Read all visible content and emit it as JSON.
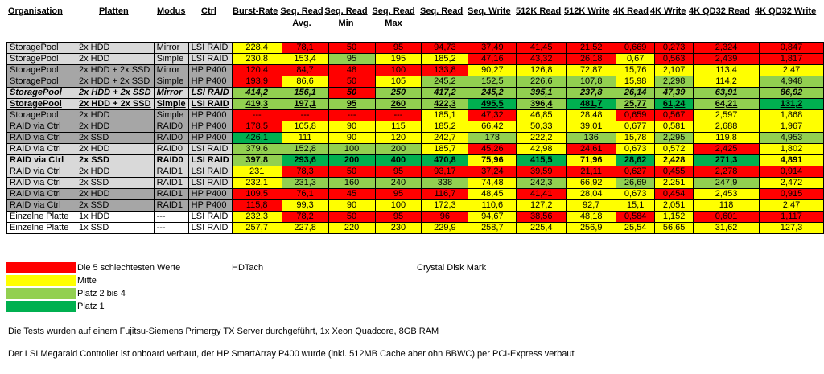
{
  "headers": {
    "organisation": "Organisation",
    "platten": "Platten",
    "modus": "Modus",
    "ctrl": "Ctrl",
    "burst": "Burst-Rate",
    "seq_read_avg_1": "Seq. Read",
    "seq_read_avg_2": "Avg.",
    "seq_read_min_1": "Seq. Read",
    "seq_read_min_2": "Min",
    "seq_read_max_1": "Seq. Read",
    "seq_read_max_2": "Max",
    "seq_read": "Seq. Read",
    "seq_write": "Seq. Write",
    "k512_read": "512K Read",
    "k512_write": "512K Write",
    "k4_read": "4K Read",
    "k4_write": "4K Write",
    "qd32_read": "4K QD32 Read",
    "qd32_write": "4K QD32 Write"
  },
  "rows": [
    {
      "cells": [
        "StoragePool",
        "2x HDD",
        "Mirror",
        "LSI RAID",
        "228,4",
        "78,1",
        "50",
        "95",
        "94,73",
        "37,49",
        "41,45",
        "21,52",
        "0,669",
        "0,273",
        "2,324",
        "0,847"
      ],
      "colors": [
        "y",
        "r",
        "r",
        "r",
        "r",
        "r",
        "r",
        "r",
        "r",
        "r",
        "r",
        "r"
      ]
    },
    {
      "cells": [
        "StoragePool",
        "2x HDD",
        "Simple",
        "LSI RAID",
        "230,8",
        "153,4",
        "95",
        "195",
        "185,2",
        "47,16",
        "43,32",
        "26,18",
        "0,67",
        "0,563",
        "2,439",
        "1,817"
      ],
      "colors": [
        "y",
        "y",
        "g",
        "y",
        "y",
        "r",
        "r",
        "r",
        "y",
        "r",
        "r",
        "r"
      ]
    },
    {
      "cells": [
        "StoragePool",
        "2x HDD + 2x SSD",
        "Mirror",
        "HP P400",
        "120,4",
        "84,7",
        "48",
        "100",
        "133,8",
        "90,27",
        "126,8",
        "72,87",
        "15,76",
        "2,107",
        "113,4",
        "2,47"
      ],
      "colors": [
        "r",
        "r",
        "r",
        "r",
        "r",
        "y",
        "y",
        "y",
        "y",
        "y",
        "y",
        "y"
      ]
    },
    {
      "cells": [
        "StoragePool",
        "2x HDD + 2x SSD",
        "Simple",
        "HP P400",
        "193,9",
        "86,6",
        "50",
        "105",
        "245,2",
        "152,5",
        "226,6",
        "107,8",
        "15,98",
        "2,298",
        "114,2",
        "4,948"
      ],
      "colors": [
        "r",
        "y",
        "r",
        "y",
        "g",
        "g",
        "g",
        "g",
        "y",
        "g",
        "y",
        "g"
      ]
    },
    {
      "cells": [
        "StoragePool",
        "2x HDD + 2x SSD",
        "Mirror",
        "LSI RAID",
        "414,2",
        "156,1",
        "50",
        "250",
        "417,2",
        "245,2",
        "395,1",
        "237,8",
        "26,14",
        "47,39",
        "63,91",
        "86,92"
      ],
      "colors": [
        "g",
        "g",
        "r",
        "g",
        "g",
        "g",
        "g",
        "g",
        "g",
        "g",
        "g",
        "g"
      ],
      "style": "bi"
    },
    {
      "cells": [
        "StoragePool",
        "2x HDD + 2x SSD",
        "Simple",
        "LSI RAID",
        "419,3",
        "197,1",
        "95",
        "260",
        "422,3",
        "495,5",
        "396,4",
        "481,7",
        "25,77",
        "61,24",
        "64,21",
        "131,2"
      ],
      "colors": [
        "g",
        "g",
        "g",
        "g",
        "g",
        "d",
        "g",
        "d",
        "g",
        "d",
        "g",
        "d"
      ],
      "style": "bu"
    },
    {
      "cells": [
        "StoragePool",
        "2x HDD",
        "Simple",
        "HP P400",
        "---",
        "---",
        "---",
        "---",
        "185,1",
        "47,32",
        "46,85",
        "28,48",
        "0,659",
        "0,567",
        "2,597",
        "1,868"
      ],
      "colors": [
        "r",
        "r",
        "r",
        "r",
        "y",
        "r",
        "y",
        "y",
        "r",
        "r",
        "y",
        "y"
      ]
    },
    {
      "cells": [
        "RAID via Ctrl",
        "2x HDD",
        "RAID0",
        "HP P400",
        "178,5",
        "105,8",
        "90",
        "115",
        "185,2",
        "66,42",
        "50,33",
        "39,01",
        "0,677",
        "0,581",
        "2,688",
        "1,967"
      ],
      "colors": [
        "r",
        "y",
        "y",
        "y",
        "y",
        "y",
        "y",
        "y",
        "y",
        "y",
        "y",
        "y"
      ]
    },
    {
      "cells": [
        "RAID via Ctrl",
        "2x SSD",
        "RAID0",
        "HP P400",
        "426,1",
        "111",
        "90",
        "120",
        "242,7",
        "178",
        "222,2",
        "136",
        "15,78",
        "2,295",
        "119,8",
        "4,953"
      ],
      "colors": [
        "d",
        "y",
        "y",
        "y",
        "y",
        "g",
        "y",
        "g",
        "y",
        "g",
        "y",
        "g"
      ]
    },
    {
      "cells": [
        "RAID via Ctrl",
        "2x HDD",
        "RAID0",
        "LSI RAID",
        "379,6",
        "152,8",
        "100",
        "200",
        "185,7",
        "45,26",
        "42,98",
        "24,61",
        "0,673",
        "0,572",
        "2,425",
        "1,802"
      ],
      "colors": [
        "g",
        "g",
        "g",
        "g",
        "y",
        "r",
        "y",
        "r",
        "y",
        "y",
        "r",
        "y"
      ]
    },
    {
      "cells": [
        "RAID via Ctrl",
        "2x SSD",
        "RAID0",
        "LSI RAID",
        "397,8",
        "293,6",
        "200",
        "400",
        "470,8",
        "75,96",
        "415,5",
        "71,96",
        "28,62",
        "2,428",
        "271,3",
        "4,891"
      ],
      "colors": [
        "g",
        "d",
        "d",
        "d",
        "d",
        "y",
        "d",
        "y",
        "d",
        "y",
        "d",
        "y"
      ],
      "style": "b"
    },
    {
      "cells": [
        "RAID via Ctrl",
        "2x HDD",
        "RAID1",
        "LSI RAID",
        "231",
        "78,3",
        "50",
        "95",
        "93,17",
        "37,24",
        "39,59",
        "21,11",
        "0,627",
        "0,455",
        "2,278",
        "0,914"
      ],
      "colors": [
        "y",
        "r",
        "r",
        "r",
        "r",
        "r",
        "r",
        "r",
        "r",
        "r",
        "r",
        "r"
      ]
    },
    {
      "cells": [
        "RAID via Ctrl",
        "2x SSD",
        "RAID1",
        "LSI RAID",
        "232,1",
        "231,3",
        "160",
        "240",
        "338",
        "74,48",
        "242,3",
        "66,92",
        "26,69",
        "2.251",
        "247,9",
        "2,472"
      ],
      "colors": [
        "y",
        "g",
        "g",
        "g",
        "g",
        "y",
        "g",
        "y",
        "g",
        "y",
        "g",
        "y"
      ]
    },
    {
      "cells": [
        "RAID via Ctrl",
        "2x HDD",
        "RAID1",
        "HP P400",
        "109,5",
        "76,1",
        "45",
        "95",
        "116,7",
        "48,45",
        "41,41",
        "28,04",
        "0,673",
        "0,454",
        "2,453",
        "0,915"
      ],
      "colors": [
        "r",
        "r",
        "r",
        "r",
        "r",
        "y",
        "r",
        "y",
        "y",
        "r",
        "y",
        "r"
      ]
    },
    {
      "cells": [
        "RAID via Ctrl",
        "2x SSD",
        "RAID1",
        "HP P400",
        "115,8",
        "99,3",
        "90",
        "100",
        "172,3",
        "110,6",
        "127,2",
        "92,7",
        "15,1",
        "2,051",
        "118",
        "2,47"
      ],
      "colors": [
        "r",
        "y",
        "y",
        "y",
        "y",
        "y",
        "y",
        "y",
        "y",
        "y",
        "y",
        "y"
      ]
    },
    {
      "cells": [
        "Einzelne Platte",
        "1x HDD",
        "---",
        "LSI RAID",
        "232,3",
        "78,2",
        "50",
        "95",
        "96",
        "94,67",
        "38,56",
        "48,18",
        "0,584",
        "1,152",
        "0,601",
        "1,117"
      ],
      "colors": [
        "y",
        "r",
        "r",
        "r",
        "r",
        "y",
        "r",
        "y",
        "r",
        "y",
        "r",
        "r"
      ]
    },
    {
      "cells": [
        "Einzelne Platte",
        "1x SSD",
        "---",
        "LSI RAID",
        "257,7",
        "227,8",
        "220",
        "230",
        "229,9",
        "258,7",
        "225,4",
        "256,9",
        "25,54",
        "56,65",
        "31,62",
        "127,3"
      ],
      "colors": [
        "y",
        "y",
        "y",
        "y",
        "y",
        "y",
        "y",
        "y",
        "y",
        "y",
        "y",
        "y"
      ]
    }
  ],
  "legend": {
    "red": "Die 5 schlechtesten Werte",
    "yellow": "Mitte",
    "lightgreen": "Platz 2 bis 4",
    "darkgreen": "Platz 1",
    "colors": {
      "red": "#ff0000",
      "yellow": "#ffff00",
      "lightgreen": "#92d050",
      "darkgreen": "#00b050"
    }
  },
  "sublabels": {
    "hdtach": "HDTach",
    "crystal": "Crystal Disk Mark"
  },
  "notes": {
    "line1": "Die Tests wurden auf einem Fujitsu-Siemens Primergy TX Server durchgeführt, 1x Xeon Quadcore, 8GB RAM",
    "line2": "Der LSI Megaraid Controller ist onboard verbaut, der HP SmartArray P400 wurde (inkl. 512MB Cache aber ohn BBWC) per PCI-Express verbaut"
  }
}
